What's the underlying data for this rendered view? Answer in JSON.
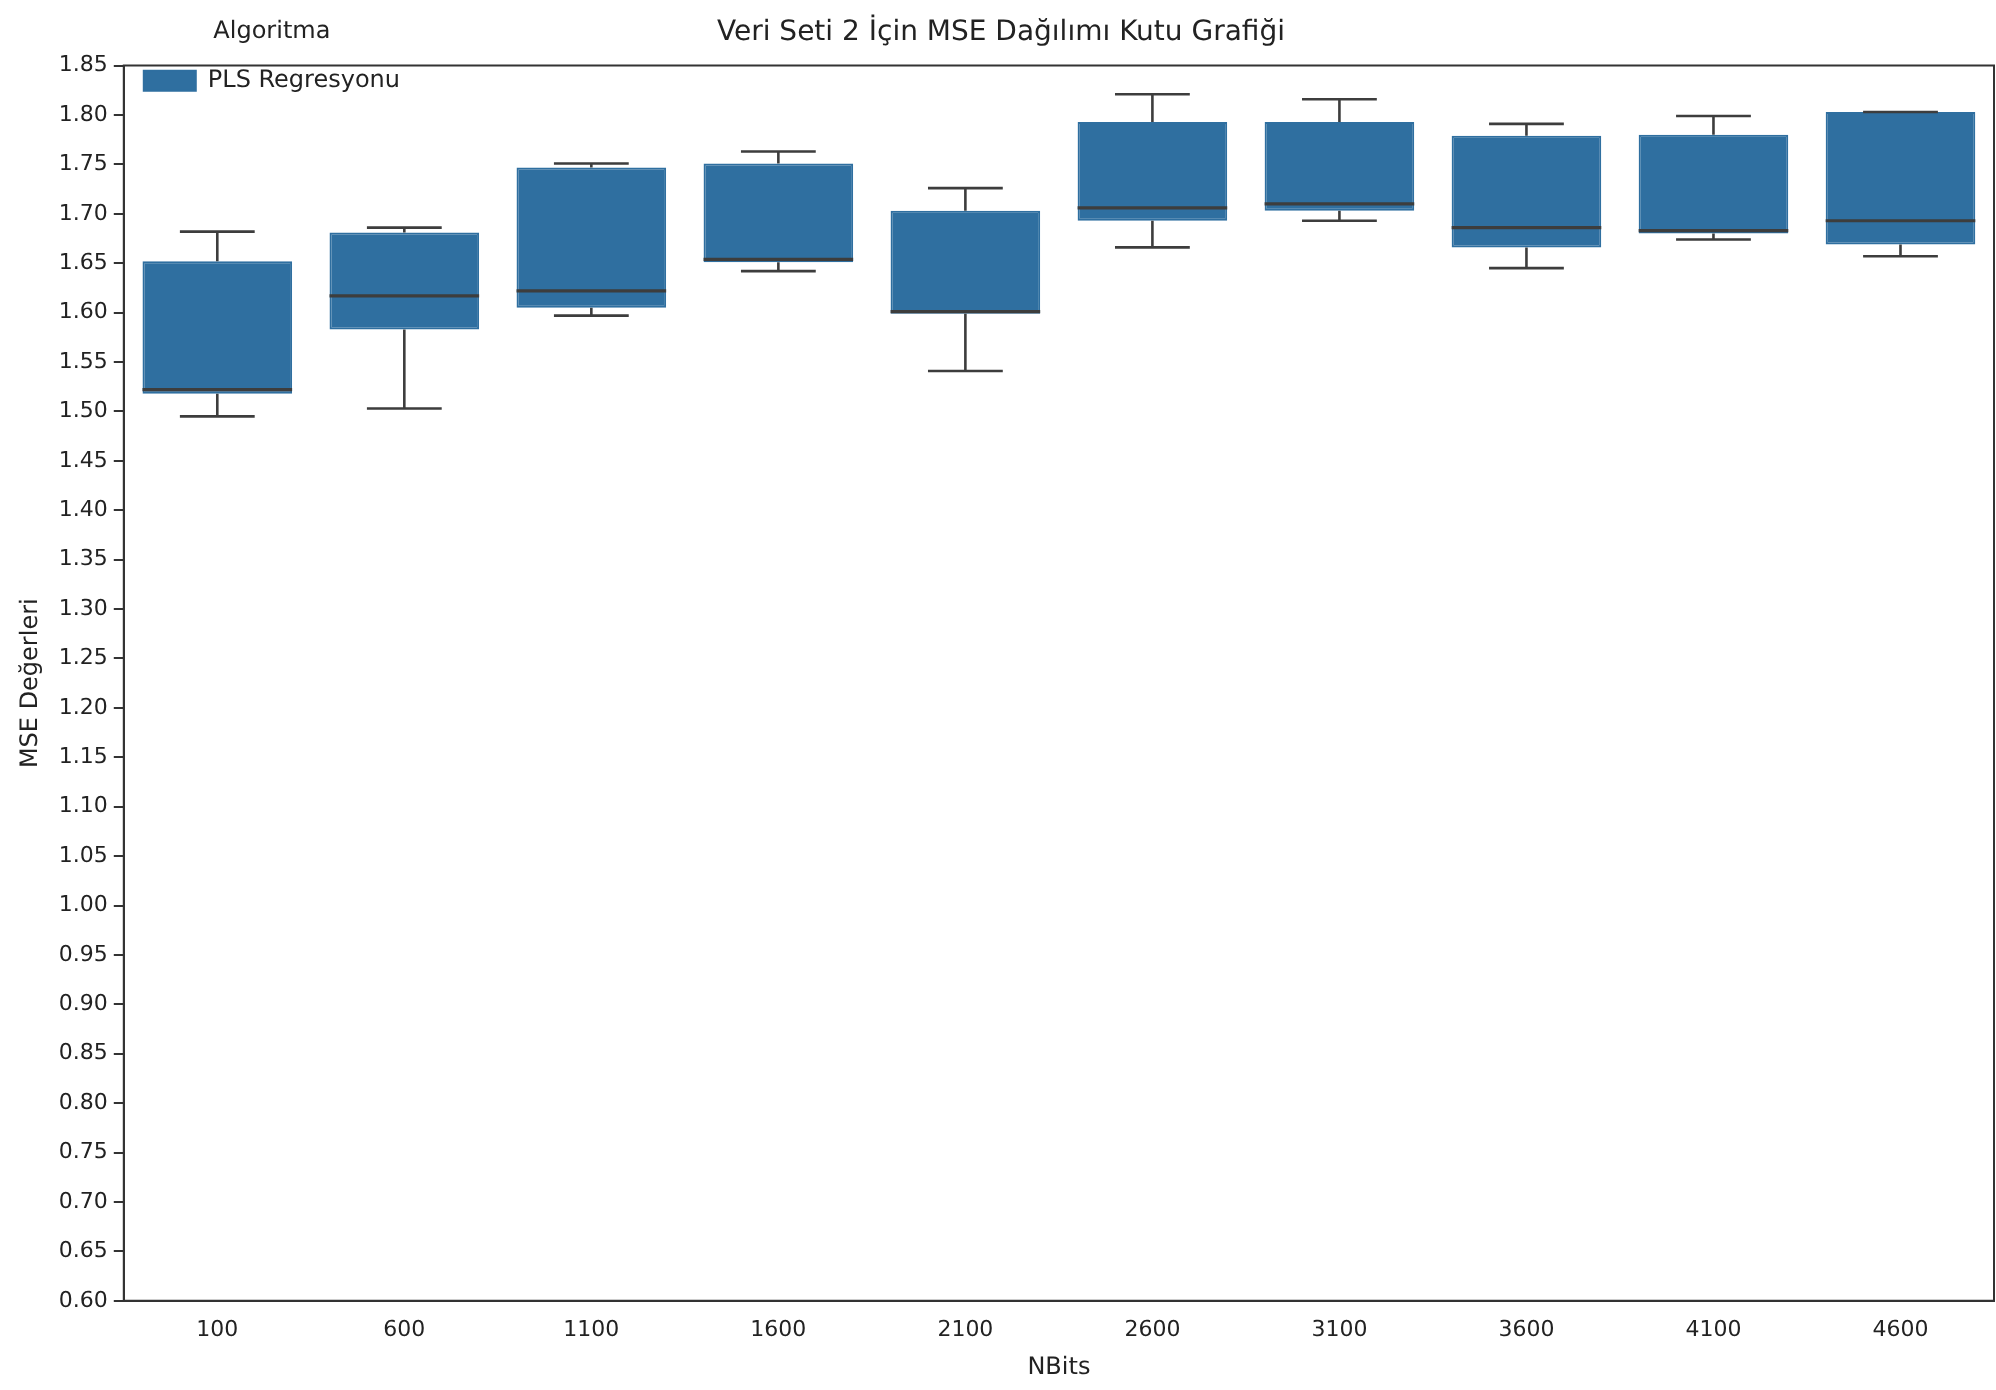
{
  "chart_data": {
    "type": "box",
    "title": "Veri Seti 2 İçin MSE Dağılımı Kutu Grafiği",
    "xlabel": "NBits",
    "ylabel": "MSE Değerleri",
    "legend_title": "Algoritma",
    "legend": "top left",
    "grid": false,
    "categories": [
      "100",
      "600",
      "1100",
      "1600",
      "2100",
      "2600",
      "3100",
      "3600",
      "4100",
      "4600"
    ],
    "ylim": [
      0.6,
      1.85
    ],
    "yticks": [
      {
        "value": 0.6,
        "label": "0.60"
      },
      {
        "value": 0.65,
        "label": "0.65"
      },
      {
        "value": 0.7,
        "label": "0.70"
      },
      {
        "value": 0.75,
        "label": "0.75"
      },
      {
        "value": 0.8,
        "label": "0.80"
      },
      {
        "value": 0.85,
        "label": "0.85"
      },
      {
        "value": 0.9,
        "label": "0.90"
      },
      {
        "value": 0.95,
        "label": "0.95"
      },
      {
        "value": 1.0,
        "label": "1.00"
      },
      {
        "value": 1.05,
        "label": "1.05"
      },
      {
        "value": 1.1,
        "label": "1.10"
      },
      {
        "value": 1.15,
        "label": "1.15"
      },
      {
        "value": 1.2,
        "label": "1.20"
      },
      {
        "value": 1.25,
        "label": "1.25"
      },
      {
        "value": 1.3,
        "label": "1.30"
      },
      {
        "value": 1.35,
        "label": "1.35"
      },
      {
        "value": 1.4,
        "label": "1.40"
      },
      {
        "value": 1.45,
        "label": "1.45"
      },
      {
        "value": 1.5,
        "label": "1.50"
      },
      {
        "value": 1.55,
        "label": "1.55"
      },
      {
        "value": 1.6,
        "label": "1.60"
      },
      {
        "value": 1.65,
        "label": "1.65"
      },
      {
        "value": 1.7,
        "label": "1.70"
      },
      {
        "value": 1.75,
        "label": "1.75"
      },
      {
        "value": 1.8,
        "label": "1.80"
      },
      {
        "value": 1.85,
        "label": "1.85"
      }
    ],
    "series": [
      {
        "name": "PLS Regresyonu",
        "color": "#2f6fa0",
        "boxes": [
          {
            "low": 1.495,
            "q1": 1.518,
            "median": 1.522,
            "q3": 1.652,
            "high": 1.682
          },
          {
            "low": 1.503,
            "q1": 1.583,
            "median": 1.617,
            "q3": 1.681,
            "high": 1.686
          },
          {
            "low": 1.597,
            "q1": 1.605,
            "median": 1.622,
            "q3": 1.747,
            "high": 1.751
          },
          {
            "low": 1.642,
            "q1": 1.651,
            "median": 1.654,
            "q3": 1.751,
            "high": 1.763
          },
          {
            "low": 1.541,
            "q1": 1.599,
            "median": 1.601,
            "q3": 1.703,
            "high": 1.726
          },
          {
            "low": 1.666,
            "q1": 1.693,
            "median": 1.706,
            "q3": 1.793,
            "high": 1.821
          },
          {
            "low": 1.693,
            "q1": 1.703,
            "median": 1.71,
            "q3": 1.793,
            "high": 1.816
          },
          {
            "low": 1.645,
            "q1": 1.666,
            "median": 1.686,
            "q3": 1.779,
            "high": 1.791
          },
          {
            "low": 1.674,
            "q1": 1.68,
            "median": 1.683,
            "q3": 1.78,
            "high": 1.799
          },
          {
            "low": 1.657,
            "q1": 1.669,
            "median": 1.693,
            "q3": 1.803,
            "high": 1.803
          }
        ]
      }
    ]
  }
}
